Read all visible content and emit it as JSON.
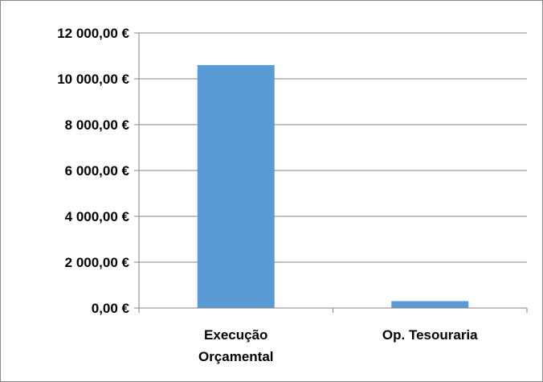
{
  "chart_data": {
    "type": "bar",
    "title": "",
    "xlabel": "",
    "ylabel": "",
    "categories": [
      [
        "Execução",
        "Orçamental"
      ],
      [
        "Op. Tesouraria"
      ]
    ],
    "values": [
      10600,
      300
    ],
    "ylim": [
      0,
      12000
    ],
    "yticks": [
      0,
      2000,
      4000,
      6000,
      8000,
      10000,
      12000
    ],
    "ytick_labels": [
      "0,00 €",
      "2 000,00 €",
      "4 000,00 €",
      "6 000,00 €",
      "8 000,00 €",
      "10 000,00 €",
      "12 000,00 €"
    ],
    "grid": true,
    "legend": "none",
    "colors": {
      "bar": "#5B9BD5",
      "grid": "#868686",
      "axis": "#868686",
      "border": "#898989"
    }
  }
}
